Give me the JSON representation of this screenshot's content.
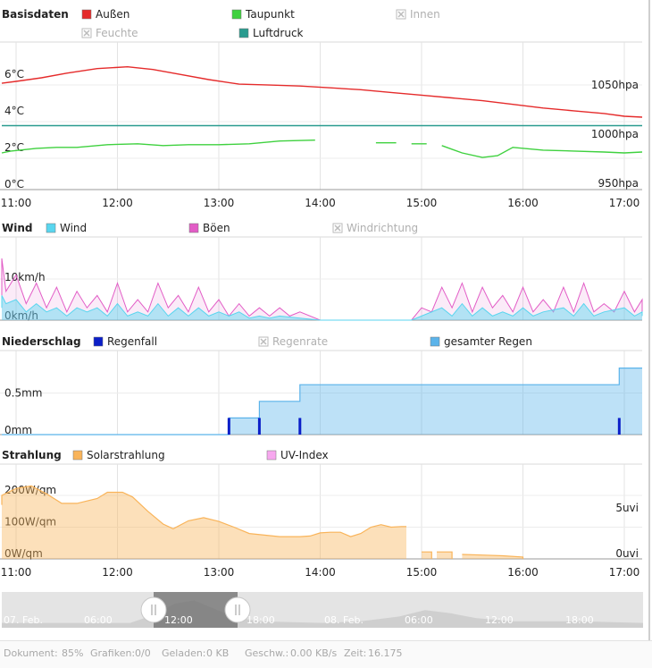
{
  "colors": {
    "aussen": "#e52b2b",
    "taupunkt": "#3fd13f",
    "luftdruck": "#2a9b8f",
    "wind": "#59d6ef",
    "boeen": "#e25cc6",
    "regenfall": "#0b1fc8",
    "gesamter_regen": "#5bb3ea",
    "solar": "#f9b45a",
    "uv": "#f7a8ef",
    "disabled": "#bbbbbb"
  },
  "chart_data": [
    {
      "id": "basisdaten",
      "type": "line",
      "title": "Basisdaten",
      "legend": [
        {
          "label": "Außen",
          "enabled": true,
          "color_key": "aussen"
        },
        {
          "label": "Taupunkt",
          "enabled": true,
          "color_key": "taupunkt"
        },
        {
          "label": "Innen",
          "enabled": false
        },
        {
          "label": "Feuchte",
          "enabled": false
        },
        {
          "label": "Luftdruck",
          "enabled": true,
          "color_key": "luftdruck"
        }
      ],
      "x_ticks": [
        "11:00",
        "12:00",
        "13:00",
        "14:00",
        "15:00",
        "16:00",
        "17:00"
      ],
      "y_ticks_left": [
        "0°C",
        "2°C",
        "4°C",
        "6°C"
      ],
      "y_ticks_right": [
        "950hpa",
        "1000hpa",
        "1050hpa"
      ],
      "ylim": [
        0,
        7.5
      ],
      "series": [
        {
          "name": "Außen",
          "color_key": "aussen",
          "points": [
            [
              10.7,
              5.8
            ],
            [
              11.0,
              5.9
            ],
            [
              11.25,
              6.1
            ],
            [
              11.5,
              6.35
            ],
            [
              11.8,
              6.6
            ],
            [
              12.1,
              6.7
            ],
            [
              12.35,
              6.55
            ],
            [
              12.6,
              6.3
            ],
            [
              12.9,
              6.0
            ],
            [
              13.2,
              5.75
            ],
            [
              13.5,
              5.7
            ],
            [
              13.8,
              5.65
            ],
            [
              14.1,
              5.55
            ],
            [
              14.4,
              5.45
            ],
            [
              14.7,
              5.3
            ],
            [
              15.0,
              5.15
            ],
            [
              15.3,
              5.0
            ],
            [
              15.6,
              4.85
            ],
            [
              15.9,
              4.65
            ],
            [
              16.2,
              4.45
            ],
            [
              16.5,
              4.3
            ],
            [
              16.8,
              4.15
            ],
            [
              17.0,
              4.0
            ],
            [
              17.3,
              3.95
            ]
          ]
        },
        {
          "name": "Taupunkt",
          "color_key": "taupunkt",
          "points": [
            [
              10.7,
              2.0
            ],
            [
              10.95,
              2.1
            ],
            [
              11.2,
              2.25
            ],
            [
              11.4,
              2.3
            ],
            [
              11.6,
              2.3
            ],
            [
              11.9,
              2.45
            ],
            [
              12.2,
              2.5
            ],
            [
              12.45,
              2.4
            ],
            [
              12.7,
              2.45
            ],
            [
              13.0,
              2.45
            ],
            [
              13.3,
              2.5
            ],
            [
              13.6,
              2.65
            ],
            [
              13.95,
              2.7
            ],
            [
              null,
              null
            ],
            [
              14.55,
              2.55
            ],
            [
              14.75,
              2.55
            ],
            [
              null,
              null
            ],
            [
              14.9,
              2.5
            ],
            [
              15.05,
              2.5
            ],
            [
              null,
              null
            ],
            [
              15.2,
              2.4
            ],
            [
              15.4,
              2.0
            ],
            [
              15.6,
              1.75
            ],
            [
              15.75,
              1.85
            ],
            [
              15.9,
              2.3
            ],
            [
              16.2,
              2.15
            ],
            [
              16.5,
              2.1
            ],
            [
              16.8,
              2.05
            ],
            [
              17.0,
              2.0
            ],
            [
              17.3,
              2.05
            ]
          ]
        },
        {
          "name": "Luftdruck",
          "color_key": "luftdruck",
          "axis": "right",
          "points": [
            [
              10.7,
              1015
            ],
            [
              17.3,
              1015
            ]
          ]
        }
      ]
    },
    {
      "id": "wind",
      "type": "area",
      "title": "Wind",
      "legend": [
        {
          "label": "Wind",
          "enabled": true,
          "color_key": "wind"
        },
        {
          "label": "Böen",
          "enabled": true,
          "color_key": "boeen"
        },
        {
          "label": "Windrichtung",
          "enabled": false
        }
      ],
      "y_ticks": [
        "0km/h",
        "10km/h"
      ],
      "ylim": [
        0,
        20
      ],
      "series": [
        {
          "name": "Böen",
          "color_key": "boeen",
          "points": [
            [
              10.7,
              6
            ],
            [
              10.8,
              15
            ],
            [
              10.9,
              7
            ],
            [
              11.0,
              11
            ],
            [
              11.1,
              4
            ],
            [
              11.2,
              9
            ],
            [
              11.3,
              3
            ],
            [
              11.4,
              8
            ],
            [
              11.5,
              2
            ],
            [
              11.6,
              7
            ],
            [
              11.7,
              3
            ],
            [
              11.8,
              6
            ],
            [
              11.9,
              2
            ],
            [
              12.0,
              9
            ],
            [
              12.1,
              2
            ],
            [
              12.2,
              5
            ],
            [
              12.3,
              2
            ],
            [
              12.4,
              9
            ],
            [
              12.5,
              3
            ],
            [
              12.6,
              6
            ],
            [
              12.7,
              2
            ],
            [
              12.8,
              8
            ],
            [
              12.9,
              2
            ],
            [
              13.0,
              5
            ],
            [
              13.1,
              1
            ],
            [
              13.2,
              4
            ],
            [
              13.3,
              1
            ],
            [
              13.4,
              3
            ],
            [
              13.5,
              1
            ],
            [
              13.6,
              3
            ],
            [
              13.7,
              1
            ],
            [
              13.8,
              2
            ],
            [
              14.0,
              0
            ],
            [
              14.9,
              0
            ],
            [
              15.0,
              3
            ],
            [
              15.1,
              2
            ],
            [
              15.2,
              8
            ],
            [
              15.3,
              3
            ],
            [
              15.4,
              9
            ],
            [
              15.5,
              2
            ],
            [
              15.6,
              8
            ],
            [
              15.7,
              3
            ],
            [
              15.8,
              6
            ],
            [
              15.9,
              2
            ],
            [
              16.0,
              8
            ],
            [
              16.1,
              2
            ],
            [
              16.2,
              5
            ],
            [
              16.3,
              2
            ],
            [
              16.4,
              8
            ],
            [
              16.5,
              2
            ],
            [
              16.6,
              9
            ],
            [
              16.7,
              2
            ],
            [
              16.8,
              4
            ],
            [
              16.9,
              2
            ],
            [
              17.0,
              7
            ],
            [
              17.1,
              2
            ],
            [
              17.2,
              5
            ],
            [
              17.3,
              2
            ]
          ]
        },
        {
          "name": "Wind",
          "color_key": "wind",
          "points": [
            [
              10.7,
              3
            ],
            [
              10.8,
              6
            ],
            [
              10.9,
              4
            ],
            [
              11.0,
              5
            ],
            [
              11.1,
              2
            ],
            [
              11.2,
              4
            ],
            [
              11.3,
              2
            ],
            [
              11.4,
              3
            ],
            [
              11.5,
              1
            ],
            [
              11.6,
              3
            ],
            [
              11.7,
              2
            ],
            [
              11.8,
              3
            ],
            [
              11.9,
              1
            ],
            [
              12.0,
              4
            ],
            [
              12.1,
              1
            ],
            [
              12.2,
              2
            ],
            [
              12.3,
              1
            ],
            [
              12.4,
              4
            ],
            [
              12.5,
              1
            ],
            [
              12.6,
              3
            ],
            [
              12.7,
              1
            ],
            [
              12.8,
              3
            ],
            [
              12.9,
              1
            ],
            [
              13.0,
              2
            ],
            [
              13.1,
              1
            ],
            [
              13.2,
              2
            ],
            [
              13.3,
              0.5
            ],
            [
              13.4,
              1
            ],
            [
              13.5,
              0.5
            ],
            [
              13.6,
              1
            ],
            [
              13.8,
              0.5
            ],
            [
              14.0,
              0
            ],
            [
              14.9,
              0
            ],
            [
              15.0,
              1
            ],
            [
              15.2,
              3
            ],
            [
              15.3,
              1
            ],
            [
              15.4,
              4
            ],
            [
              15.5,
              1
            ],
            [
              15.6,
              3
            ],
            [
              15.7,
              1
            ],
            [
              15.8,
              2
            ],
            [
              15.9,
              1
            ],
            [
              16.0,
              3
            ],
            [
              16.1,
              1
            ],
            [
              16.2,
              2
            ],
            [
              16.4,
              3
            ],
            [
              16.5,
              1
            ],
            [
              16.6,
              4
            ],
            [
              16.7,
              1
            ],
            [
              16.8,
              2
            ],
            [
              17.0,
              3
            ],
            [
              17.1,
              1
            ],
            [
              17.2,
              2
            ],
            [
              17.3,
              1
            ]
          ]
        }
      ]
    },
    {
      "id": "niederschlag",
      "type": "area",
      "title": "Niederschlag",
      "legend": [
        {
          "label": "Regenfall",
          "enabled": true,
          "color_key": "regenfall"
        },
        {
          "label": "Regenrate",
          "enabled": false
        },
        {
          "label": "gesamter Regen",
          "enabled": true,
          "color_key": "gesamter_regen"
        }
      ],
      "y_ticks": [
        "0mm",
        "0.5mm"
      ],
      "ylim": [
        0,
        0.85
      ],
      "series": [
        {
          "name": "gesamter Regen",
          "color_key": "gesamter_regen",
          "steps": [
            [
              10.7,
              0
            ],
            [
              13.1,
              0
            ],
            [
              13.1,
              0.2
            ],
            [
              13.4,
              0.2
            ],
            [
              13.4,
              0.4
            ],
            [
              13.8,
              0.4
            ],
            [
              13.8,
              0.6
            ],
            [
              16.95,
              0.6
            ],
            [
              16.95,
              0.8
            ],
            [
              17.3,
              0.8
            ]
          ]
        },
        {
          "name": "Regenfall",
          "color_key": "regenfall",
          "bars": [
            [
              13.1,
              0.2
            ],
            [
              13.4,
              0.2
            ],
            [
              13.8,
              0.2
            ],
            [
              16.95,
              0.2
            ]
          ]
        }
      ]
    },
    {
      "id": "strahlung",
      "type": "area",
      "title": "Strahlung",
      "legend": [
        {
          "label": "Solarstrahlung",
          "enabled": true,
          "color_key": "solar"
        },
        {
          "label": "UV-Index",
          "enabled": true,
          "color_key": "uv"
        }
      ],
      "y_ticks_left": [
        "0W/qm",
        "100W/qm",
        "200W/qm"
      ],
      "y_ticks_right": [
        "0uvi",
        "5uvi"
      ],
      "ylim": [
        0,
        285
      ],
      "series": [
        {
          "name": "Solarstrahlung",
          "color_key": "solar",
          "segments": [
            [
              [
                10.7,
                170
              ],
              [
                10.85,
                200
              ],
              [
                11.0,
                222
              ],
              [
                11.15,
                230
              ],
              [
                11.3,
                205
              ],
              [
                11.45,
                175
              ],
              [
                11.6,
                175
              ],
              [
                11.8,
                190
              ],
              [
                11.9,
                210
              ],
              [
                12.05,
                210
              ],
              [
                12.15,
                195
              ],
              [
                12.3,
                150
              ],
              [
                12.45,
                110
              ],
              [
                12.55,
                95
              ],
              [
                12.7,
                120
              ],
              [
                12.85,
                130
              ],
              [
                13.0,
                118
              ],
              [
                13.15,
                100
              ],
              [
                13.3,
                80
              ],
              [
                13.45,
                75
              ],
              [
                13.6,
                70
              ],
              [
                13.8,
                70
              ],
              [
                13.9,
                72
              ],
              [
                14.0,
                82
              ],
              [
                14.1,
                84
              ],
              [
                14.2,
                84
              ],
              [
                14.3,
                70
              ],
              [
                14.4,
                80
              ],
              [
                14.5,
                100
              ],
              [
                14.6,
                108
              ],
              [
                14.7,
                100
              ],
              [
                14.8,
                102
              ],
              [
                14.85,
                102
              ]
            ],
            [
              [
                15.0,
                22
              ],
              [
                15.1,
                22
              ],
              [
                15.1,
                0
              ]
            ],
            [
              [
                15.15,
                22
              ],
              [
                15.3,
                22
              ],
              [
                15.3,
                0
              ]
            ],
            [
              [
                15.4,
                14
              ],
              [
                15.6,
                12
              ],
              [
                15.8,
                10
              ],
              [
                16.0,
                6
              ],
              [
                16.0,
                0
              ]
            ]
          ]
        }
      ]
    }
  ],
  "navigator": {
    "labels": [
      "07. Feb.",
      "06:00",
      "12:00",
      "18:00",
      "08. Feb.",
      "06:00",
      "12:00",
      "18:00"
    ]
  },
  "status": {
    "dokument_label": "Dokument:",
    "dokument_value": "85%",
    "grafiken_label": "Grafiken:",
    "grafiken_value": "0/0",
    "geladen_label": "Geladen:",
    "geladen_value": "0 KB",
    "geschw_label": "Geschw.:",
    "geschw_value": "0.00 KB/s",
    "zeit_label": "Zeit:",
    "zeit_value": "16.175"
  }
}
